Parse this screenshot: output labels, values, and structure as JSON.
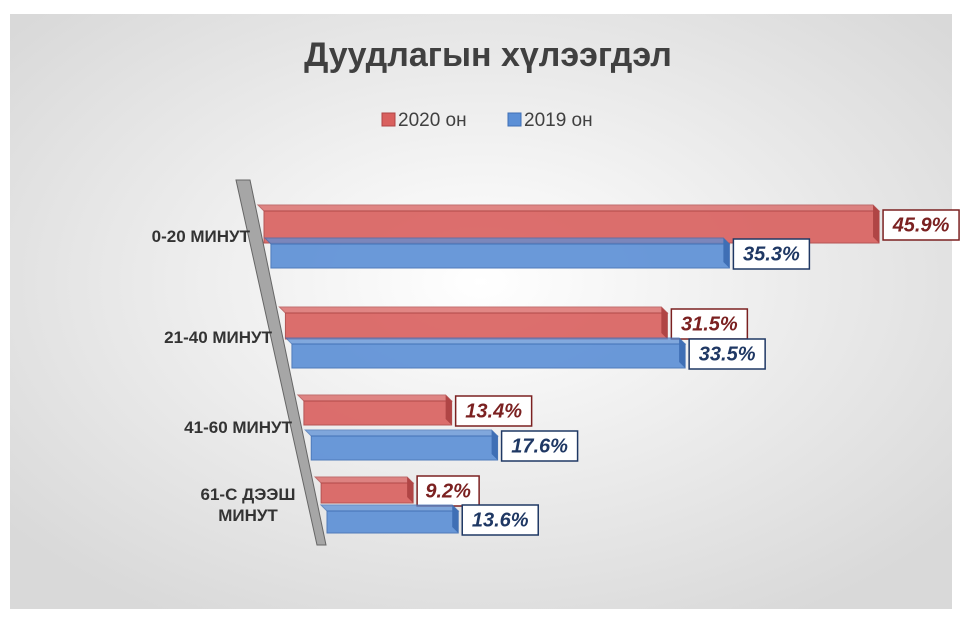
{
  "chart_data": {
    "type": "bar3d-horizontal",
    "title": "Дуудлагын хүлээгдэл",
    "categories": [
      "0-20 МИНУТ",
      "21-40 МИНУТ",
      "41-60 МИНУТ",
      "61-С ДЭЭШ МИНУТ"
    ],
    "series": [
      {
        "name": "2020 он",
        "color": "#d9605e",
        "values": [
          45.9,
          31.5,
          13.4,
          9.2
        ],
        "value_labels": [
          "45.9%",
          "31.5%",
          "13.4%",
          "9.2%"
        ]
      },
      {
        "name": "2019 он",
        "color": "#5b8fd6",
        "values": [
          35.3,
          33.5,
          17.6,
          13.6
        ],
        "value_labels": [
          "35.3%",
          "33.5%",
          "17.6%",
          "13.6%"
        ]
      }
    ],
    "legend": "top"
  }
}
